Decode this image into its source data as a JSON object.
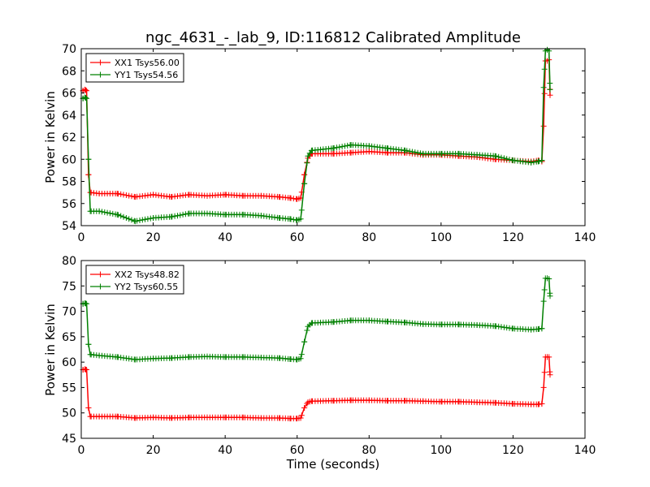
{
  "figure_title": "ngc_4631_-_lab_9, ID:116812 Calibrated Amplitude",
  "chart_data": [
    {
      "type": "line",
      "title": "ngc_4631_-_lab_9, ID:116812 Calibrated Amplitude",
      "xlabel": "",
      "ylabel": "Power in Kelvin",
      "xlim": [
        0,
        140
      ],
      "ylim": [
        54,
        70
      ],
      "xticks": [
        0,
        20,
        40,
        60,
        80,
        100,
        120,
        140
      ],
      "yticks": [
        54,
        56,
        58,
        60,
        62,
        64,
        66,
        68,
        70
      ],
      "grid": false,
      "legend_position": "top-left",
      "marker": "+",
      "series": [
        {
          "name": "XX1 Tsys56.00",
          "color": "#ff0000",
          "points": [
            [
              0.5,
              66.2
            ],
            [
              1,
              66.3
            ],
            [
              1.5,
              66.2
            ],
            [
              2,
              58.6
            ],
            [
              2.5,
              57.0
            ],
            [
              5,
              56.9
            ],
            [
              10,
              56.9
            ],
            [
              15,
              56.6
            ],
            [
              20,
              56.8
            ],
            [
              25,
              56.6
            ],
            [
              30,
              56.8
            ],
            [
              35,
              56.7
            ],
            [
              40,
              56.8
            ],
            [
              45,
              56.7
            ],
            [
              50,
              56.7
            ],
            [
              55,
              56.6
            ],
            [
              58,
              56.5
            ],
            [
              60,
              56.4
            ],
            [
              61,
              56.5
            ],
            [
              62,
              58.6
            ],
            [
              63,
              60.1
            ],
            [
              64,
              60.5
            ],
            [
              70,
              60.5
            ],
            [
              75,
              60.6
            ],
            [
              80,
              60.7
            ],
            [
              85,
              60.6
            ],
            [
              90,
              60.6
            ],
            [
              95,
              60.4
            ],
            [
              100,
              60.4
            ],
            [
              105,
              60.3
            ],
            [
              110,
              60.2
            ],
            [
              115,
              60.0
            ],
            [
              120,
              59.9
            ],
            [
              125,
              59.8
            ],
            [
              127,
              59.9
            ],
            [
              128,
              59.8
            ],
            [
              128.5,
              63.0
            ],
            [
              129,
              68.9
            ],
            [
              129.5,
              68.9
            ],
            [
              130,
              69.0
            ],
            [
              130.3,
              65.8
            ]
          ]
        },
        {
          "name": "YY1 Tsys54.56",
          "color": "#008000",
          "points": [
            [
              0.5,
              65.5
            ],
            [
              1,
              65.6
            ],
            [
              1.5,
              65.5
            ],
            [
              2,
              60.0
            ],
            [
              2.5,
              55.3
            ],
            [
              5,
              55.3
            ],
            [
              10,
              55.0
            ],
            [
              15,
              54.4
            ],
            [
              20,
              54.7
            ],
            [
              25,
              54.8
            ],
            [
              30,
              55.1
            ],
            [
              35,
              55.1
            ],
            [
              40,
              55.0
            ],
            [
              45,
              55.0
            ],
            [
              50,
              54.9
            ],
            [
              55,
              54.7
            ],
            [
              58,
              54.6
            ],
            [
              60,
              54.5
            ],
            [
              61,
              54.6
            ],
            [
              62,
              57.8
            ],
            [
              63,
              60.3
            ],
            [
              64,
              60.8
            ],
            [
              70,
              61.0
            ],
            [
              75,
              61.3
            ],
            [
              80,
              61.2
            ],
            [
              85,
              61.0
            ],
            [
              90,
              60.8
            ],
            [
              95,
              60.5
            ],
            [
              100,
              60.5
            ],
            [
              105,
              60.5
            ],
            [
              110,
              60.4
            ],
            [
              115,
              60.3
            ],
            [
              120,
              59.9
            ],
            [
              125,
              59.7
            ],
            [
              127,
              59.8
            ],
            [
              128,
              59.9
            ],
            [
              128.5,
              66.5
            ],
            [
              129,
              69.8
            ],
            [
              129.5,
              69.9
            ],
            [
              130,
              69.8
            ],
            [
              130.3,
              66.3
            ]
          ]
        }
      ]
    },
    {
      "type": "line",
      "title": "",
      "xlabel": "Time (seconds)",
      "ylabel": "Power in Kelvin",
      "xlim": [
        0,
        140
      ],
      "ylim": [
        45,
        80
      ],
      "xticks": [
        0,
        20,
        40,
        60,
        80,
        100,
        120,
        140
      ],
      "yticks": [
        45,
        50,
        55,
        60,
        65,
        70,
        75,
        80
      ],
      "grid": false,
      "legend_position": "top-left",
      "marker": "+",
      "series": [
        {
          "name": "XX2 Tsys48.82",
          "color": "#ff0000",
          "points": [
            [
              0.5,
              58.5
            ],
            [
              1,
              58.6
            ],
            [
              1.5,
              58.5
            ],
            [
              2,
              51.0
            ],
            [
              2.5,
              49.3
            ],
            [
              5,
              49.3
            ],
            [
              10,
              49.3
            ],
            [
              15,
              49.0
            ],
            [
              20,
              49.1
            ],
            [
              25,
              49.0
            ],
            [
              30,
              49.1
            ],
            [
              35,
              49.1
            ],
            [
              40,
              49.1
            ],
            [
              45,
              49.1
            ],
            [
              50,
              49.0
            ],
            [
              55,
              49.0
            ],
            [
              58,
              48.9
            ],
            [
              60,
              48.9
            ],
            [
              61,
              49.0
            ],
            [
              62,
              51.0
            ],
            [
              63,
              52.1
            ],
            [
              64,
              52.3
            ],
            [
              70,
              52.4
            ],
            [
              75,
              52.5
            ],
            [
              80,
              52.5
            ],
            [
              85,
              52.4
            ],
            [
              90,
              52.4
            ],
            [
              95,
              52.3
            ],
            [
              100,
              52.2
            ],
            [
              105,
              52.2
            ],
            [
              110,
              52.1
            ],
            [
              115,
              52.0
            ],
            [
              120,
              51.8
            ],
            [
              125,
              51.7
            ],
            [
              127,
              51.7
            ],
            [
              128,
              51.8
            ],
            [
              128.5,
              55.0
            ],
            [
              129,
              61.0
            ],
            [
              129.5,
              61.0
            ],
            [
              130,
              61.0
            ],
            [
              130.3,
              57.5
            ]
          ]
        },
        {
          "name": "YY2 Tsys60.55",
          "color": "#008000",
          "points": [
            [
              0.5,
              71.5
            ],
            [
              1,
              71.6
            ],
            [
              1.5,
              71.5
            ],
            [
              2,
              63.5
            ],
            [
              2.5,
              61.5
            ],
            [
              5,
              61.3
            ],
            [
              10,
              61.0
            ],
            [
              15,
              60.5
            ],
            [
              20,
              60.7
            ],
            [
              25,
              60.8
            ],
            [
              30,
              61.0
            ],
            [
              35,
              61.1
            ],
            [
              40,
              61.0
            ],
            [
              45,
              61.0
            ],
            [
              50,
              60.9
            ],
            [
              55,
              60.8
            ],
            [
              58,
              60.6
            ],
            [
              60,
              60.5
            ],
            [
              61,
              60.7
            ],
            [
              62,
              64.0
            ],
            [
              63,
              67.0
            ],
            [
              64,
              67.7
            ],
            [
              70,
              67.9
            ],
            [
              75,
              68.2
            ],
            [
              80,
              68.2
            ],
            [
              85,
              68.0
            ],
            [
              90,
              67.8
            ],
            [
              95,
              67.5
            ],
            [
              100,
              67.4
            ],
            [
              105,
              67.4
            ],
            [
              110,
              67.3
            ],
            [
              115,
              67.1
            ],
            [
              120,
              66.6
            ],
            [
              125,
              66.4
            ],
            [
              127,
              66.5
            ],
            [
              128,
              66.6
            ],
            [
              128.5,
              72.0
            ],
            [
              129,
              76.5
            ],
            [
              129.5,
              76.5
            ],
            [
              130,
              76.4
            ],
            [
              130.3,
              73.0
            ]
          ]
        }
      ]
    }
  ]
}
